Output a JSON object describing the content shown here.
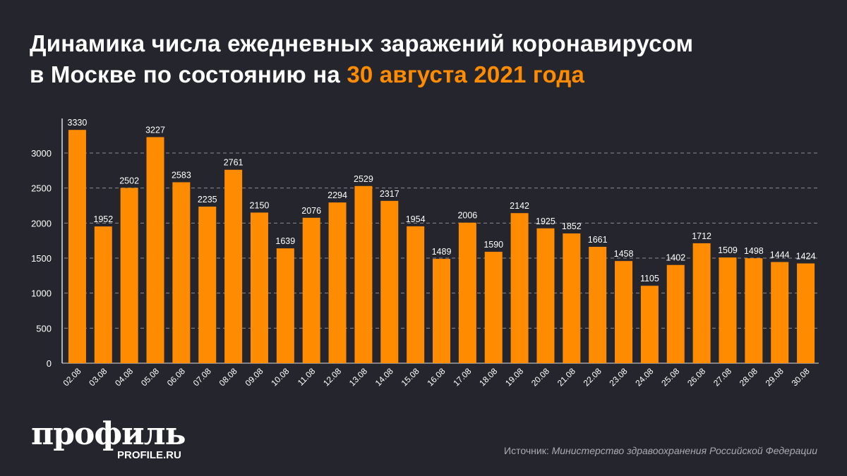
{
  "title": {
    "line1": "Динамика числа ежедневных заражений коронавирусом",
    "line2_prefix": "в Москве по состоянию на ",
    "line2_highlight": "30 августа 2021 года"
  },
  "colors": {
    "bar": "#ff8c00",
    "background": "#25252d",
    "highlight": "#ff8c00"
  },
  "chart_data": {
    "type": "bar",
    "title": "Динамика числа ежедневных заражений коронавирусом в Москве по состоянию на 30 августа 2021 года",
    "categories": [
      "02.08",
      "03.08",
      "04.08",
      "05.08",
      "06.08",
      "07.08",
      "08.08",
      "09.08",
      "10.08",
      "11.08",
      "12.08",
      "13.08",
      "14.08",
      "15.08",
      "16.08",
      "17.08",
      "18.08",
      "19.08",
      "20.08",
      "21.08",
      "22.08",
      "23.08",
      "24.08",
      "25.08",
      "26.08",
      "27.08",
      "28.08",
      "29.08",
      "30.08"
    ],
    "values": [
      3330,
      1952,
      2502,
      3227,
      2583,
      2235,
      2761,
      2150,
      1639,
      2076,
      2294,
      2529,
      2317,
      1954,
      1489,
      2006,
      1590,
      2142,
      1925,
      1852,
      1661,
      1458,
      1105,
      1402,
      1712,
      1509,
      1498,
      1444,
      1424
    ],
    "yticks": [
      0,
      500,
      1000,
      1500,
      2000,
      2500,
      3000
    ],
    "ylim": [
      0,
      3330
    ],
    "grid": true,
    "data_labels": true,
    "xlabel": "",
    "ylabel": ""
  },
  "logo": {
    "name": "профиль",
    "site": "PROFILE.RU"
  },
  "source": {
    "label": "Источник:",
    "text": "Министерство здравоохранения Российской Федерации"
  }
}
